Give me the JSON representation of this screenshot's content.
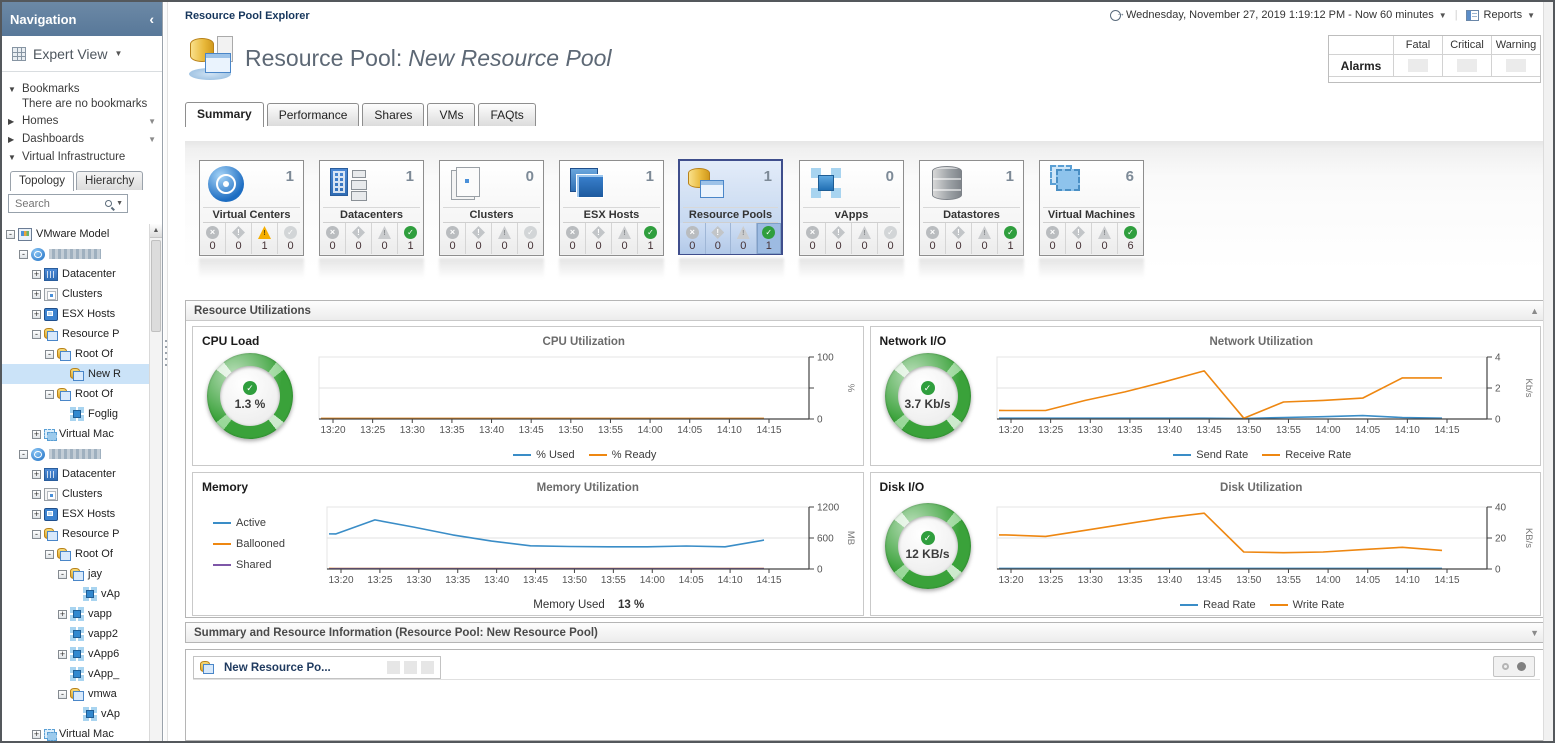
{
  "sidebar": {
    "title": "Navigation",
    "view_selector": "Expert View",
    "bookmarks_label": "Bookmarks",
    "bookmarks_empty": "There are no bookmarks",
    "homes_label": "Homes",
    "dashboards_label": "Dashboards",
    "virtual_infrastructure_label": "Virtual Infrastructure",
    "tree_tabs": {
      "topology": "Topology",
      "hierarchy": "Hierarchy",
      "active": "Topology"
    },
    "search_placeholder": "Search",
    "tree": [
      {
        "label": "VMware Model",
        "depth": 0,
        "expander": "minus",
        "icon": "model"
      },
      {
        "label": "",
        "redacted": true,
        "depth": 1,
        "expander": "minus",
        "icon": "vcenter"
      },
      {
        "label": "Datacenter",
        "depth": 2,
        "expander": "plus",
        "icon": "datacenter"
      },
      {
        "label": "Clusters",
        "depth": 2,
        "expander": "plus",
        "icon": "cluster"
      },
      {
        "label": "ESX Hosts",
        "depth": 2,
        "expander": "plus",
        "icon": "esx"
      },
      {
        "label": "Resource P",
        "depth": 2,
        "expander": "minus",
        "icon": "rp"
      },
      {
        "label": "Root Of",
        "depth": 3,
        "expander": "minus",
        "icon": "rp"
      },
      {
        "label": "New R",
        "depth": 4,
        "expander": "none",
        "icon": "rp",
        "selected": true
      },
      {
        "label": "Root Of",
        "depth": 3,
        "expander": "minus",
        "icon": "rp"
      },
      {
        "label": "Foglig",
        "depth": 4,
        "expander": "none",
        "icon": "vapp"
      },
      {
        "label": "Virtual Mac",
        "depth": 2,
        "expander": "plus",
        "icon": "vm"
      },
      {
        "label": "",
        "redacted": true,
        "depth": 1,
        "expander": "minus",
        "icon": "vcenter"
      },
      {
        "label": "Datacenter",
        "depth": 2,
        "expander": "plus",
        "icon": "datacenter"
      },
      {
        "label": "Clusters",
        "depth": 2,
        "expander": "plus",
        "icon": "cluster"
      },
      {
        "label": "ESX Hosts",
        "depth": 2,
        "expander": "plus",
        "icon": "esx"
      },
      {
        "label": "Resource P",
        "depth": 2,
        "expander": "minus",
        "icon": "rp"
      },
      {
        "label": "Root Of",
        "depth": 3,
        "expander": "minus",
        "icon": "rp"
      },
      {
        "label": "jay",
        "depth": 4,
        "expander": "minus",
        "icon": "rp"
      },
      {
        "label": "vAp",
        "depth": 5,
        "expander": "none",
        "icon": "vapp"
      },
      {
        "label": "vapp",
        "depth": 4,
        "expander": "plus",
        "icon": "vapp"
      },
      {
        "label": "vapp2",
        "depth": 4,
        "expander": "none",
        "icon": "vapp"
      },
      {
        "label": "vApp6",
        "depth": 4,
        "expander": "plus",
        "icon": "vapp"
      },
      {
        "label": "vApp_",
        "depth": 4,
        "expander": "none",
        "icon": "vapp"
      },
      {
        "label": "vmwa",
        "depth": 4,
        "expander": "minus",
        "icon": "rp"
      },
      {
        "label": "vAp",
        "depth": 5,
        "expander": "none",
        "icon": "vapp"
      },
      {
        "label": "Virtual Mac",
        "depth": 2,
        "expander": "plus",
        "icon": "vm"
      }
    ]
  },
  "header": {
    "explorer_label": "Resource Pool Explorer",
    "title_prefix": "Resource Pool:",
    "title_name": "New Resource Pool",
    "time_range": "Wednesday, November 27, 2019 1:19:12 PM - Now 60 minutes",
    "reports_label": "Reports"
  },
  "alarms_summary": {
    "row_label": "Alarms",
    "columns": [
      "Fatal",
      "Critical",
      "Warning"
    ],
    "values": [
      "",
      "",
      ""
    ]
  },
  "page_tabs": {
    "items": [
      "Summary",
      "Performance",
      "Shares",
      "VMs",
      "FAQts"
    ],
    "active": "Summary"
  },
  "tiles": {
    "status_kinds": [
      "fatal",
      "critical",
      "warning",
      "normal"
    ],
    "items": [
      {
        "label": "Virtual Centers",
        "count": "1",
        "icon": "vcenter",
        "statuses": [
          0,
          0,
          1,
          0
        ]
      },
      {
        "label": "Datacenters",
        "count": "1",
        "icon": "datacenter",
        "statuses": [
          0,
          0,
          0,
          1
        ]
      },
      {
        "label": "Clusters",
        "count": "0",
        "icon": "cluster",
        "statuses": [
          0,
          0,
          0,
          0
        ]
      },
      {
        "label": "ESX Hosts",
        "count": "1",
        "icon": "esx",
        "statuses": [
          0,
          0,
          0,
          1
        ]
      },
      {
        "label": "Resource Pools",
        "count": "1",
        "icon": "rp",
        "statuses": [
          0,
          0,
          0,
          1
        ],
        "selected": true
      },
      {
        "label": "vApps",
        "count": "0",
        "icon": "vapp",
        "statuses": [
          0,
          0,
          0,
          0
        ]
      },
      {
        "label": "Datastores",
        "count": "1",
        "icon": "datastore",
        "statuses": [
          0,
          0,
          0,
          1
        ]
      },
      {
        "label": "Virtual Machines",
        "count": "6",
        "icon": "vm",
        "statuses": [
          0,
          0,
          0,
          6
        ]
      }
    ]
  },
  "utilizations": {
    "title": "Resource Utilizations",
    "cpu": {
      "label": "CPU Load",
      "gauge_value": "1.3 %"
    },
    "network": {
      "label": "Network I/O",
      "gauge_value": "3.7 Kb/s"
    },
    "memory": {
      "label": "Memory",
      "footer_label": "Memory Used",
      "footer_value": "13 %"
    },
    "disk": {
      "label": "Disk I/O",
      "gauge_value": "12 KB/s"
    }
  },
  "summary_section": {
    "title": "Summary and Resource Information (Resource Pool: New Resource Pool)",
    "tab_label": "New Resource Po..."
  },
  "chart_data": [
    {
      "type": "line",
      "title": "CPU Utilization",
      "unit": "%",
      "ymax": 100,
      "x": [
        "13:20",
        "13:25",
        "13:30",
        "13:35",
        "13:40",
        "13:45",
        "13:50",
        "13:55",
        "14:00",
        "14:05",
        "14:10",
        "14:15"
      ],
      "yticks": [
        {
          "v": 0,
          "label": "0"
        },
        {
          "v": 50,
          "label": ""
        },
        {
          "v": 100,
          "label": "100"
        }
      ],
      "series": [
        {
          "name": "% Used",
          "color": "#3a8dc7",
          "values": [
            0.5,
            0.5,
            0.5,
            0.5,
            0.5,
            0.5,
            0.5,
            0.5,
            0.5,
            0.5,
            0.5,
            0.5
          ]
        },
        {
          "name": "% Ready",
          "color": "#ee8711",
          "values": [
            1,
            1,
            1,
            1,
            1,
            1,
            1,
            1,
            1,
            1,
            1,
            1
          ]
        }
      ],
      "legend_position": "bottom"
    },
    {
      "type": "line",
      "title": "Network Utilization",
      "unit": "Kb/s",
      "ymax": 4,
      "x": [
        "13:20",
        "13:25",
        "13:30",
        "13:35",
        "13:40",
        "13:45",
        "13:50",
        "13:55",
        "14:00",
        "14:05",
        "14:10",
        "14:15"
      ],
      "yticks": [
        {
          "v": 0,
          "label": "0"
        },
        {
          "v": 2,
          "label": "2"
        },
        {
          "v": 4,
          "label": "4"
        }
      ],
      "series": [
        {
          "name": "Send Rate",
          "color": "#3a8dc7",
          "values": [
            0.05,
            0.05,
            0.05,
            0.05,
            0.05,
            0.05,
            0.03,
            0.1,
            0.15,
            0.22,
            0.1,
            0.05
          ]
        },
        {
          "name": "Receive Rate",
          "color": "#ee8711",
          "values": [
            0.55,
            0.55,
            1.2,
            1.75,
            2.4,
            3.1,
            0.05,
            1.1,
            1.2,
            1.35,
            2.65,
            2.65
          ]
        }
      ],
      "legend_position": "bottom"
    },
    {
      "type": "line",
      "title": "Memory Utilization",
      "unit": "MB",
      "ymax": 1200,
      "x": [
        "13:20",
        "13:25",
        "13:30",
        "13:35",
        "13:40",
        "13:45",
        "13:50",
        "13:55",
        "14:00",
        "14:05",
        "14:10",
        "14:15"
      ],
      "yticks": [
        {
          "v": 0,
          "label": "0"
        },
        {
          "v": 600,
          "label": "600"
        },
        {
          "v": 1200,
          "label": "1200"
        }
      ],
      "series": [
        {
          "name": "Active",
          "color": "#3a8dc7",
          "values": [
            680,
            950,
            810,
            660,
            540,
            450,
            435,
            430,
            430,
            445,
            430,
            560
          ]
        },
        {
          "name": "Ballooned",
          "color": "#ee8711",
          "values": [
            10,
            10,
            10,
            10,
            10,
            10,
            10,
            10,
            10,
            10,
            10,
            10
          ]
        },
        {
          "name": "Shared",
          "color": "#7e57a8",
          "values": [
            5,
            5,
            5,
            5,
            5,
            5,
            5,
            5,
            5,
            5,
            5,
            5
          ]
        }
      ],
      "legend_position": "left",
      "footer": {
        "label": "Memory Used",
        "value": "13 %"
      }
    },
    {
      "type": "line",
      "title": "Disk Utilization",
      "unit": "KB/s",
      "ymax": 40,
      "x": [
        "13:20",
        "13:25",
        "13:30",
        "13:35",
        "13:40",
        "13:45",
        "13:50",
        "13:55",
        "14:00",
        "14:05",
        "14:10",
        "14:15"
      ],
      "yticks": [
        {
          "v": 0,
          "label": "0"
        },
        {
          "v": 20,
          "label": "20"
        },
        {
          "v": 40,
          "label": "40"
        }
      ],
      "series": [
        {
          "name": "Read Rate",
          "color": "#3a8dc7",
          "values": [
            0.4,
            0.4,
            0.4,
            0.4,
            0.4,
            0.4,
            0.4,
            0.4,
            0.4,
            0.4,
            0.4,
            0.4
          ]
        },
        {
          "name": "Write Rate",
          "color": "#ee8711",
          "values": [
            22,
            21,
            25,
            29,
            33,
            36,
            11,
            10.5,
            11,
            12.5,
            14,
            12
          ]
        }
      ],
      "legend_position": "bottom"
    }
  ]
}
